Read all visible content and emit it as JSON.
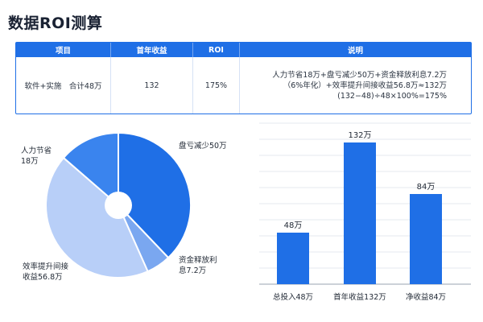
{
  "page": {
    "title": "数据ROI测算"
  },
  "table": {
    "headers": [
      "项目",
      "首年收益",
      "ROI",
      "说明"
    ],
    "row": {
      "item": "软件+实施　合计48万",
      "first_year": "132",
      "roi": "175%",
      "desc_lines": [
        "人力节省18万+盘亏减少50万+资金释放利息7.2万",
        "（6%年化）+效率提升间接收益56.8万≈132万",
        "(132−48)÷48×100%=175%"
      ]
    }
  },
  "chart_data": [
    {
      "type": "pie",
      "labels": [
        "盘亏减少50万",
        "资金释放利息7.2万",
        "效率提升间接收益56.8万",
        "人力节省18万"
      ],
      "label_lines": [
        [
          "盘亏减少50万"
        ],
        [
          "资金释放利 ",
          "息7.2万"
        ],
        [
          "效率提升间接",
          "收益56.8万"
        ],
        [
          "人力节省",
          "18万"
        ]
      ],
      "values": [
        50,
        7.2,
        56.8,
        18
      ],
      "colors": [
        "#1f6fe6",
        "#7aa7f0",
        "#b8cff8",
        "#3a84ee"
      ]
    },
    {
      "type": "bar",
      "categories": [
        "总投入48万",
        "首年收益132万",
        "净收益84万"
      ],
      "values": [
        48,
        132,
        84
      ],
      "value_labels": [
        "48万",
        "132万",
        "84万"
      ],
      "grid": true,
      "colors": {
        "bar": "#1f6fe6",
        "grid": "#e4e8ef",
        "axis": "#9aa3b0"
      }
    }
  ]
}
